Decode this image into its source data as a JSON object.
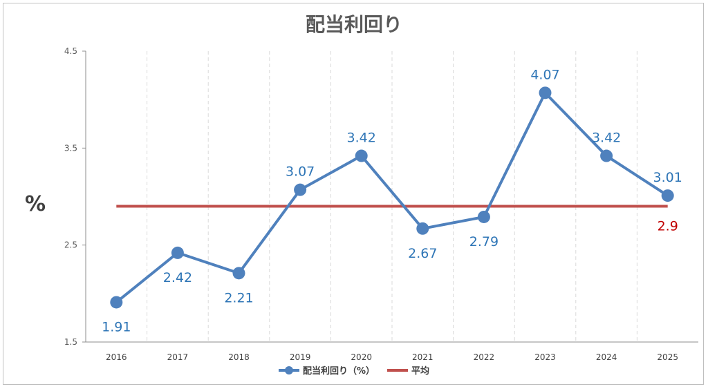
{
  "chart_data": {
    "type": "line",
    "title": "配当利回り",
    "ylabel": "%",
    "xlabel": "",
    "categories": [
      "2016",
      "2017",
      "2018",
      "2019",
      "2020",
      "2021",
      "2022",
      "2023",
      "2024",
      "2025"
    ],
    "ylim": [
      1.5,
      4.5
    ],
    "yticks": [
      "1.5",
      "2.5",
      "3.5",
      "4.5"
    ],
    "grid": "vertical-dashed",
    "legend_position": "bottom",
    "series": [
      {
        "name": "配当利回り（%）",
        "values": [
          1.91,
          2.42,
          2.21,
          3.07,
          3.42,
          2.67,
          2.79,
          4.07,
          3.42,
          3.01
        ],
        "labels": [
          "1.91",
          "2.42",
          "2.21",
          "3.07",
          "3.42",
          "2.67",
          "2.79",
          "4.07",
          "3.42",
          "3.01"
        ],
        "label_positions": [
          "below",
          "below",
          "below",
          "above",
          "above",
          "below",
          "below",
          "above",
          "above",
          "above"
        ],
        "color": "#4f81bd",
        "label_color": "#2e75b6",
        "marker": "circle"
      },
      {
        "name": "平均",
        "value": 2.9,
        "label": "2.9",
        "label_position": "below-end",
        "color": "#c0504d",
        "label_color": "#c00000"
      }
    ]
  }
}
